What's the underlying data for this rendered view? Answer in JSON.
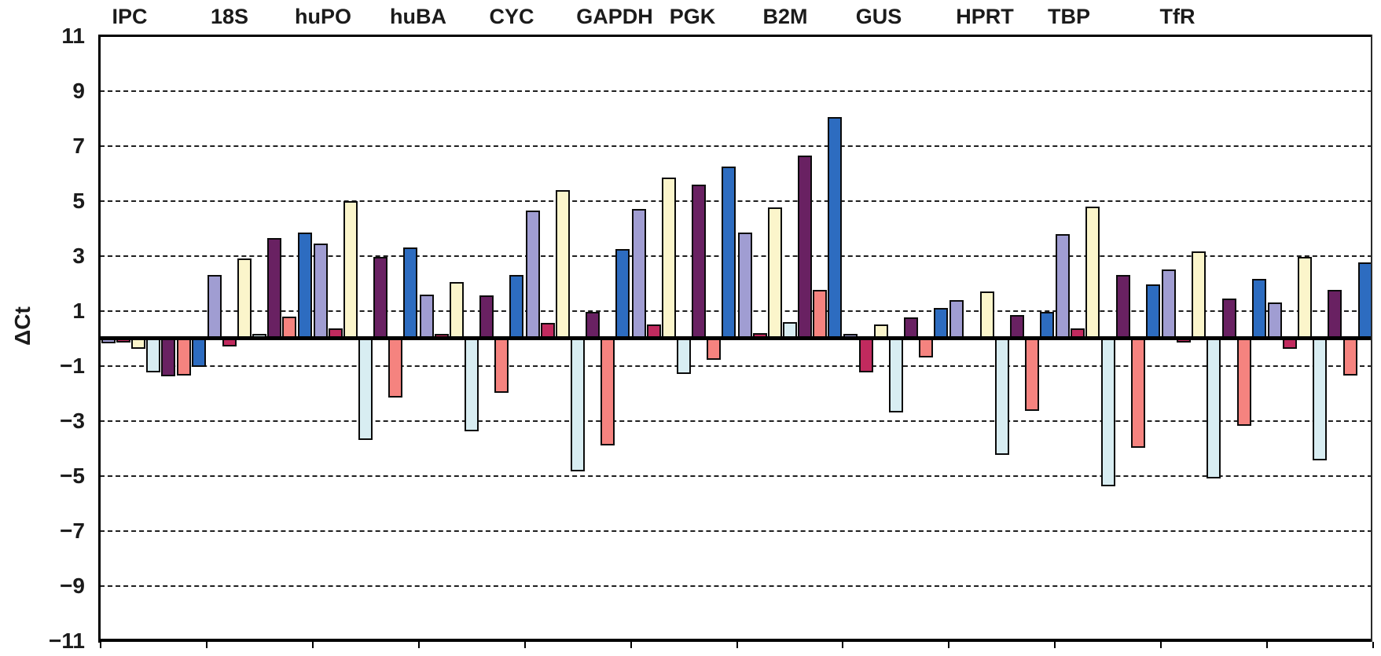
{
  "chart_data": {
    "type": "bar",
    "title": "",
    "ylabel": "ΔCt",
    "xlabel": "",
    "ylim": [
      -11,
      11
    ],
    "grid": "horizontal dashed lines at odd values, solid zero line",
    "legend_position": "none",
    "y_ticks": [
      11,
      9,
      7,
      5,
      3,
      1,
      -1,
      -3,
      -5,
      -7,
      -9,
      -11
    ],
    "y_tick_labels": [
      "11",
      "9",
      "7",
      "5",
      "3",
      "1",
      "−1",
      "−3",
      "−5",
      "−7",
      "−9",
      "−11"
    ],
    "categories": [
      "IPC",
      "18S",
      "huPO",
      "huBA",
      "CYC",
      "GAPDH",
      "PGK",
      "B2M",
      "GUS",
      "HPRT",
      "TBP",
      "TfR"
    ],
    "series": [
      {
        "name": "series_lavender",
        "color": "#a09dd2",
        "values": [
          -0.15,
          2.3,
          3.45,
          1.6,
          4.65,
          4.7,
          3.85,
          0.15,
          1.4,
          3.8,
          2.5,
          1.3
        ]
      },
      {
        "name": "series_crimson",
        "color": "#c12a5e",
        "values": [
          -0.1,
          -0.25,
          0.35,
          0.15,
          0.55,
          0.5,
          0.2,
          -1.2,
          0.0,
          0.35,
          -0.1,
          -0.35
        ]
      },
      {
        "name": "series_cream",
        "color": "#fbf5cb",
        "values": [
          -0.35,
          2.9,
          5.0,
          2.05,
          5.4,
          5.85,
          4.75,
          0.5,
          1.7,
          4.8,
          3.15,
          2.95
        ]
      },
      {
        "name": "series_pale_blue",
        "color": "#d8edf2",
        "values": [
          -1.2,
          0.15,
          -3.65,
          -3.35,
          -4.8,
          -1.25,
          0.6,
          -2.65,
          -4.2,
          -5.35,
          -5.05,
          -4.4
        ]
      },
      {
        "name": "series_purple",
        "color": "#692162",
        "values": [
          -1.35,
          3.65,
          2.95,
          1.55,
          0.95,
          5.6,
          6.65,
          0.75,
          0.85,
          2.3,
          1.45,
          1.75
        ]
      },
      {
        "name": "series_salmon",
        "color": "#f5837f",
        "values": [
          -1.3,
          0.8,
          -2.1,
          -1.95,
          -3.85,
          -0.75,
          1.75,
          -0.65,
          -2.6,
          -3.95,
          -3.15,
          -1.3
        ]
      },
      {
        "name": "series_blue",
        "color": "#2d6cc0",
        "values": [
          -1.0,
          3.85,
          3.3,
          2.3,
          3.25,
          6.25,
          8.05,
          1.1,
          0.95,
          1.95,
          2.15,
          2.75
        ]
      }
    ]
  }
}
